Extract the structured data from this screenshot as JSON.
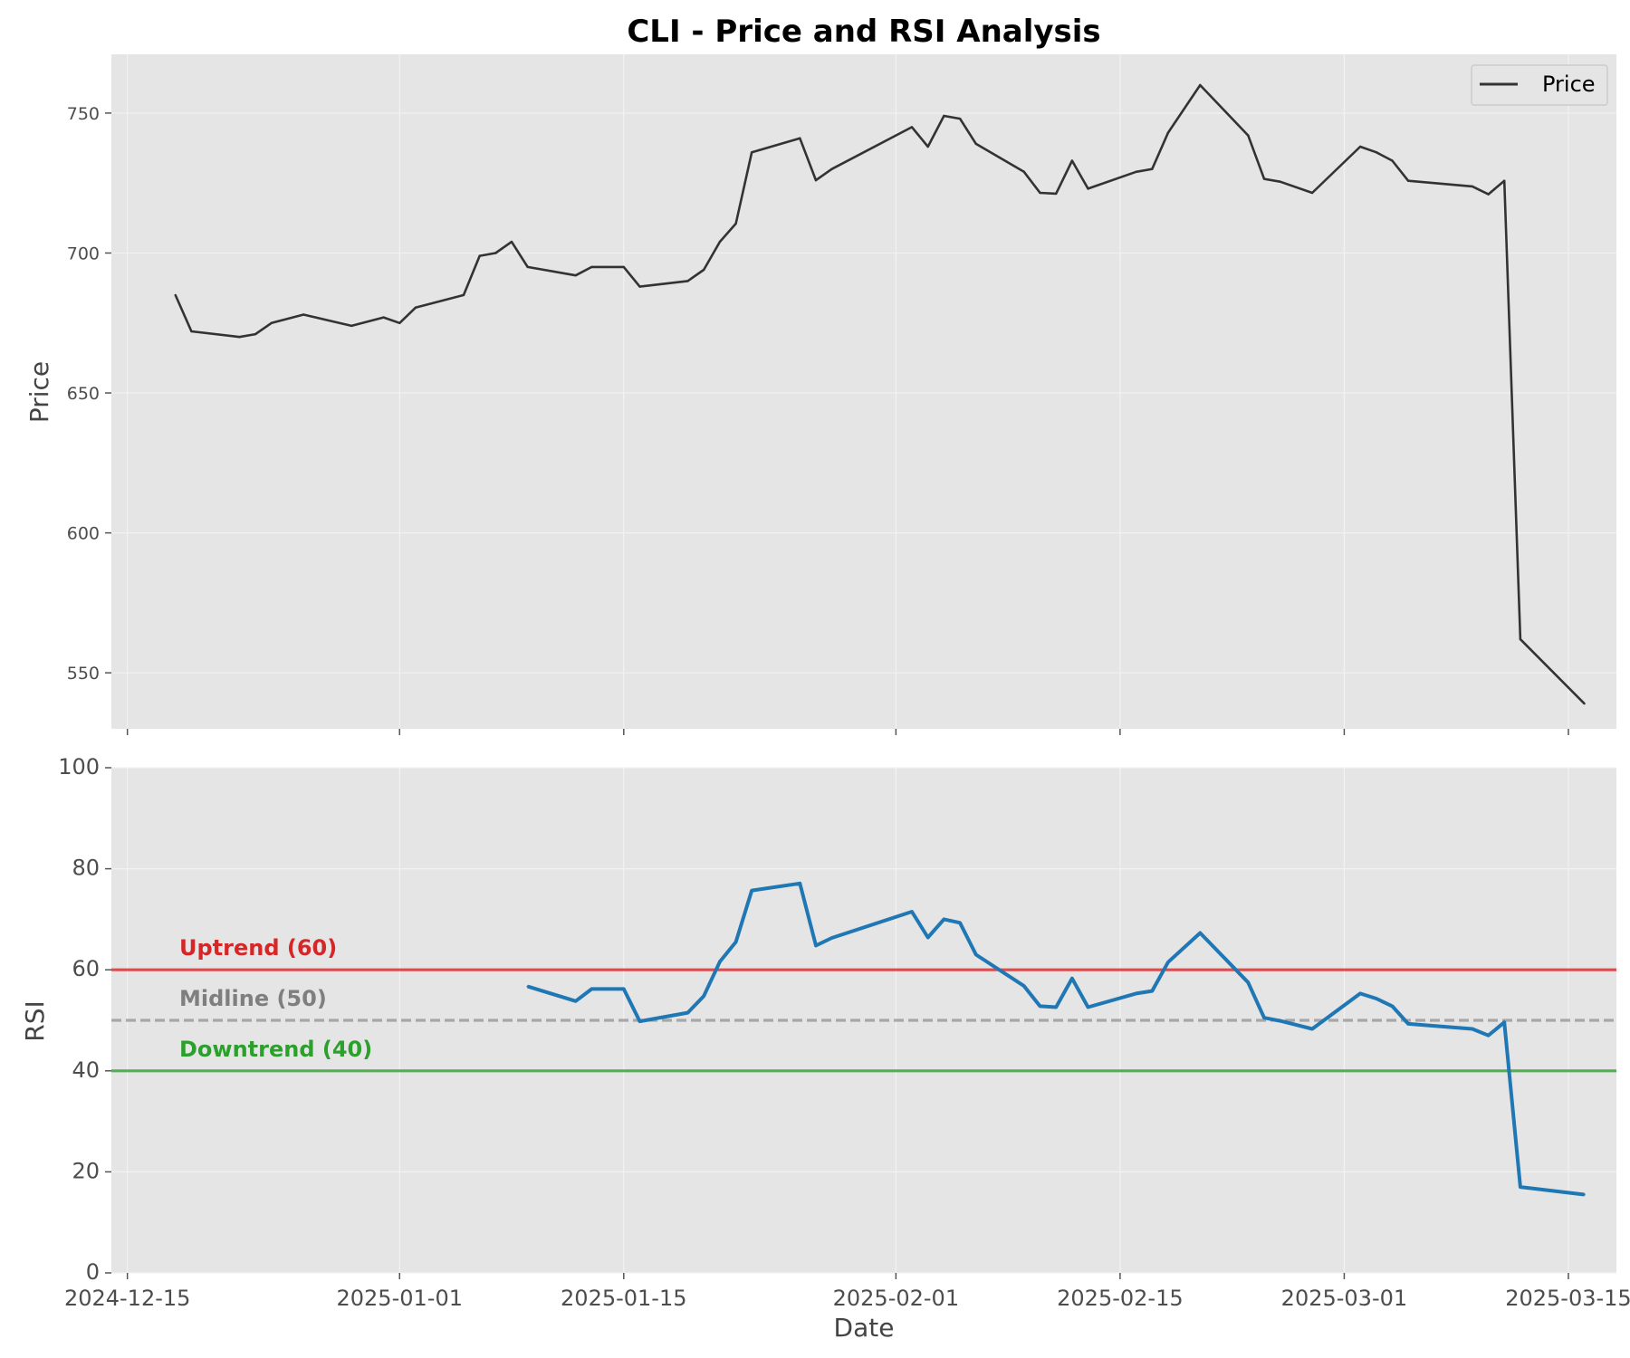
{
  "chart_data": [
    {
      "type": "line",
      "title": "CLI - Price and RSI Analysis",
      "xlabel": "",
      "ylabel": "Price",
      "ylim": [
        530,
        771
      ],
      "xlim": [
        "2024-12-14",
        "2025-03-18"
      ],
      "grid": true,
      "legend": "top-right",
      "yticks": [
        550,
        600,
        650,
        700,
        750
      ],
      "xticks": [
        "2024-12-15",
        "2025-01-01",
        "2025-01-15",
        "2025-02-01",
        "2025-02-15",
        "2025-03-01",
        "2025-03-15"
      ],
      "series": [
        {
          "name": "Price",
          "color": "#333333",
          "x": [
            "2024-12-18",
            "2024-12-19",
            "2024-12-22",
            "2024-12-23",
            "2024-12-24",
            "2024-12-26",
            "2024-12-29",
            "2024-12-31",
            "2025-01-01",
            "2025-01-02",
            "2025-01-05",
            "2025-01-06",
            "2025-01-07",
            "2025-01-08",
            "2025-01-09",
            "2025-01-12",
            "2025-01-13",
            "2025-01-14",
            "2025-01-15",
            "2025-01-16",
            "2025-01-19",
            "2025-01-20",
            "2025-01-21",
            "2025-01-22",
            "2025-01-23",
            "2025-01-26",
            "2025-01-27",
            "2025-01-28",
            "2025-02-02",
            "2025-02-03",
            "2025-02-04",
            "2025-02-05",
            "2025-02-06",
            "2025-02-09",
            "2025-02-10",
            "2025-02-11",
            "2025-02-12",
            "2025-02-13",
            "2025-02-16",
            "2025-02-17",
            "2025-02-18",
            "2025-02-20",
            "2025-02-23",
            "2025-02-24",
            "2025-02-25",
            "2025-02-27",
            "2025-03-02",
            "2025-03-03",
            "2025-03-04",
            "2025-03-05",
            "2025-03-09",
            "2025-03-10",
            "2025-03-11",
            "2025-03-12",
            "2025-03-16"
          ],
          "values": [
            685,
            672,
            670,
            671,
            675,
            678,
            674,
            677,
            675,
            680.5,
            685,
            699,
            700,
            704,
            695,
            692,
            695,
            695,
            695,
            688,
            690,
            694,
            704,
            710.5,
            736,
            741,
            726,
            730,
            745,
            738,
            749,
            748,
            739,
            729,
            721.5,
            721.2,
            733,
            723,
            729,
            730,
            743,
            760,
            742,
            726.5,
            725.5,
            721.5,
            738,
            736,
            733,
            725.8,
            723.8,
            721,
            725.8,
            562,
            539
          ]
        }
      ]
    },
    {
      "type": "line",
      "title": "",
      "xlabel": "Date",
      "ylabel": "RSI",
      "ylim": [
        0,
        100
      ],
      "xlim": [
        "2024-12-14",
        "2025-03-18"
      ],
      "grid": true,
      "yticks": [
        0,
        20,
        40,
        60,
        80,
        100
      ],
      "xticks": [
        "2024-12-15",
        "2025-01-01",
        "2025-01-15",
        "2025-02-01",
        "2025-02-15",
        "2025-03-01",
        "2025-03-15"
      ],
      "series": [
        {
          "color": "#1f77b4",
          "x": [
            "2025-01-09",
            "2025-01-12",
            "2025-01-13",
            "2025-01-14",
            "2025-01-15",
            "2025-01-16",
            "2025-01-19",
            "2025-01-20",
            "2025-01-21",
            "2025-01-22",
            "2025-01-23",
            "2025-01-26",
            "2025-01-27",
            "2025-01-28",
            "2025-02-02",
            "2025-02-03",
            "2025-02-04",
            "2025-02-05",
            "2025-02-06",
            "2025-02-09",
            "2025-02-10",
            "2025-02-11",
            "2025-02-12",
            "2025-02-13",
            "2025-02-16",
            "2025-02-17",
            "2025-02-18",
            "2025-02-20",
            "2025-02-23",
            "2025-02-24",
            "2025-02-25",
            "2025-02-27",
            "2025-03-02",
            "2025-03-03",
            "2025-03-04",
            "2025-03-05",
            "2025-03-09",
            "2025-03-10",
            "2025-03-11",
            "2025-03-12",
            "2025-03-16"
          ],
          "values": [
            56.7,
            53.8,
            56.2,
            56.2,
            56.2,
            49.8,
            51.5,
            54.8,
            61.6,
            65.5,
            75.7,
            77.1,
            64.8,
            66.3,
            71.5,
            66.4,
            70,
            69.3,
            63,
            56.8,
            52.8,
            52.6,
            58.3,
            52.6,
            55.3,
            55.8,
            61.5,
            67.3,
            57.5,
            50.5,
            49.9,
            48.3,
            55.3,
            54.3,
            52.8,
            49.3,
            48.3,
            47,
            49.6,
            17,
            15.5
          ]
        }
      ],
      "reference_lines": [
        {
          "value": 60,
          "label": "Uptrend (60)",
          "color": "#d62728",
          "style": "solid"
        },
        {
          "value": 50,
          "label": "Midline (50)",
          "color": "#7f7f7f",
          "style": "dashed"
        },
        {
          "value": 40,
          "label": "Downtrend (40)",
          "color": "#2ca02c",
          "style": "solid"
        }
      ]
    }
  ]
}
